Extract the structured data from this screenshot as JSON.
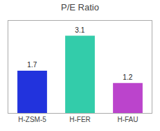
{
  "chart_data": {
    "type": "bar",
    "title": "P/E Ratio",
    "categories": [
      "H-ZSM-5",
      "H-FER",
      "H-FAU"
    ],
    "values": [
      1.7,
      3.1,
      1.2
    ],
    "colors": [
      "#2233dd",
      "#33ccaa",
      "#bb44cc"
    ],
    "ylim": [
      0,
      3.7
    ],
    "yticks": [],
    "tick_labels": "x",
    "data_labels": true,
    "grid": false
  }
}
